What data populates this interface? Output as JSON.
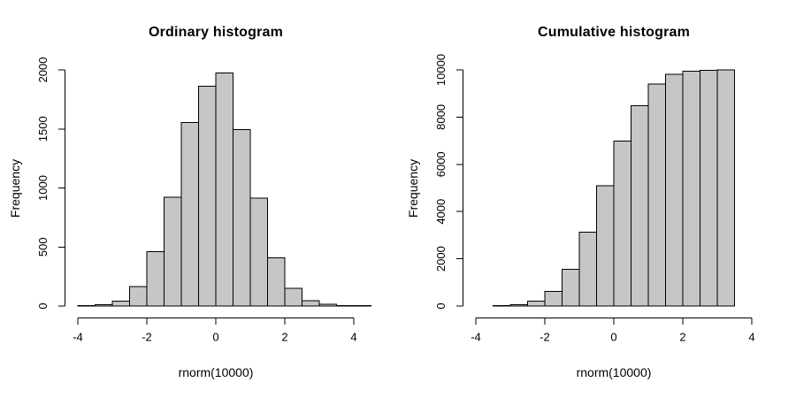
{
  "figure": {
    "background": "#ffffff",
    "text_color": "#000000"
  },
  "chart_data": [
    {
      "type": "bar",
      "chart_kind": "histogram",
      "title": "Ordinary histogram",
      "xlabel": "rnorm(10000)",
      "ylabel": "Frequency",
      "bin_start": -4.0,
      "bin_width": 0.5,
      "values": [
        5,
        10,
        40,
        165,
        460,
        920,
        1555,
        1860,
        1975,
        1495,
        915,
        410,
        150,
        45,
        15,
        5,
        2
      ],
      "x_ticks": [
        -4,
        -2,
        0,
        2,
        4
      ],
      "y_ticks": [
        0,
        500,
        1000,
        1500,
        2000
      ],
      "xlim": [
        -4,
        4.5
      ],
      "ylim": [
        0,
        2000
      ],
      "grid": false,
      "legend": false,
      "bar_fill": "#c6c6c6",
      "bar_stroke": "#000000"
    },
    {
      "type": "bar",
      "chart_kind": "histogram",
      "title": "Cumulative histogram",
      "xlabel": "rnorm(10000)",
      "ylabel": "Frequency",
      "bin_start": -3.5,
      "bin_width": 0.5,
      "values": [
        20,
        55,
        200,
        620,
        1560,
        3130,
        5100,
        6980,
        8480,
        9400,
        9810,
        9950,
        9990,
        10000
      ],
      "x_ticks": [
        -4,
        -2,
        0,
        2,
        4
      ],
      "y_ticks": [
        0,
        2000,
        4000,
        6000,
        8000,
        10000
      ],
      "xlim": [
        -4,
        3.5
      ],
      "ylim": [
        0,
        10000
      ],
      "grid": false,
      "legend": false,
      "bar_fill": "#c6c6c6",
      "bar_stroke": "#000000"
    }
  ]
}
